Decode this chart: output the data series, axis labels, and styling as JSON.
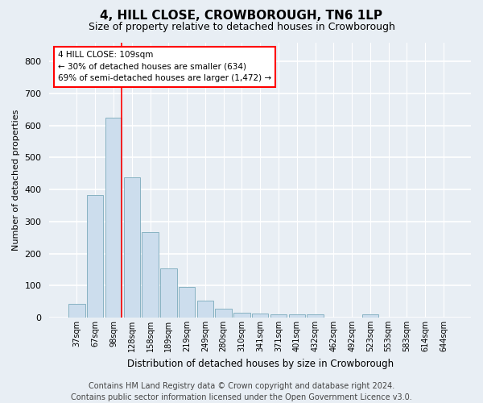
{
  "title": "4, HILL CLOSE, CROWBOROUGH, TN6 1LP",
  "subtitle": "Size of property relative to detached houses in Crowborough",
  "xlabel": "Distribution of detached houses by size in Crowborough",
  "ylabel": "Number of detached properties",
  "categories": [
    "37sqm",
    "67sqm",
    "98sqm",
    "128sqm",
    "158sqm",
    "189sqm",
    "219sqm",
    "249sqm",
    "280sqm",
    "310sqm",
    "341sqm",
    "371sqm",
    "401sqm",
    "432sqm",
    "462sqm",
    "492sqm",
    "523sqm",
    "553sqm",
    "583sqm",
    "614sqm",
    "644sqm"
  ],
  "values": [
    42,
    382,
    625,
    438,
    268,
    153,
    95,
    52,
    27,
    15,
    12,
    10,
    10,
    10,
    0,
    0,
    9,
    0,
    0,
    0,
    0
  ],
  "bar_color": "#ccdded",
  "bar_edge_color": "#7aaabb",
  "red_line_index": 2,
  "annotation_text": "4 HILL CLOSE: 109sqm\n← 30% of detached houses are smaller (634)\n69% of semi-detached houses are larger (1,472) →",
  "annotation_box_color": "white",
  "annotation_box_edge_color": "red",
  "ylim": [
    0,
    860
  ],
  "yticks": [
    0,
    100,
    200,
    300,
    400,
    500,
    600,
    700,
    800
  ],
  "footer_line1": "Contains HM Land Registry data © Crown copyright and database right 2024.",
  "footer_line2": "Contains public sector information licensed under the Open Government Licence v3.0.",
  "background_color": "#e8eef4",
  "plot_bg_color": "#e8eef4",
  "grid_color": "white",
  "title_fontsize": 11,
  "subtitle_fontsize": 9,
  "footer_fontsize": 7
}
